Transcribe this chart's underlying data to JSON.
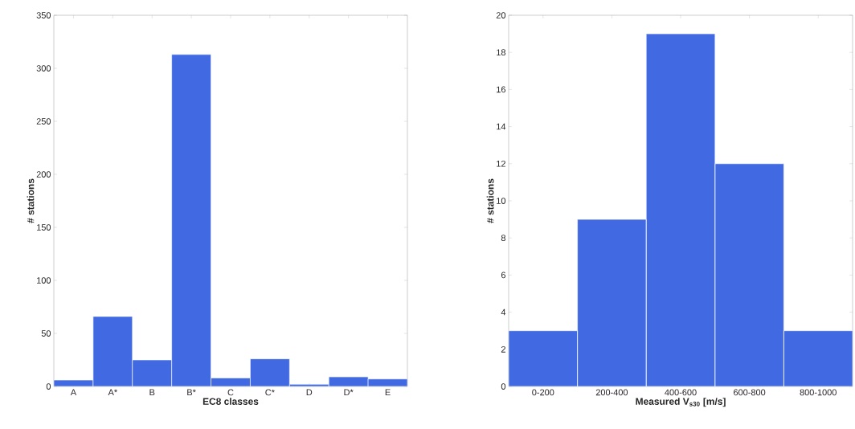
{
  "chart_data": [
    {
      "type": "bar",
      "xlabel": "EC8 classes",
      "ylabel": "# stations",
      "categories": [
        "A",
        "A*",
        "B",
        "B*",
        "C",
        "C*",
        "D",
        "D*",
        "E"
      ],
      "values": [
        6,
        66,
        25,
        313,
        8,
        26,
        2,
        9,
        7
      ],
      "color": "#4169e1",
      "ylim": [
        0,
        350
      ],
      "yticks": [
        0,
        50,
        100,
        150,
        200,
        250,
        300,
        350
      ]
    },
    {
      "type": "bar",
      "xlabel": "Measured V$_{s30}$ [m/s]",
      "ylabel": "# stations",
      "categories": [
        "0-200",
        "200-400",
        "400-600",
        "600-800",
        "800-1000"
      ],
      "values": [
        3,
        9,
        19,
        12,
        3
      ],
      "color": "#4169e1",
      "ylim": [
        0,
        20
      ],
      "yticks": [
        0,
        2,
        4,
        6,
        8,
        10,
        12,
        14,
        16,
        18,
        20
      ]
    }
  ]
}
